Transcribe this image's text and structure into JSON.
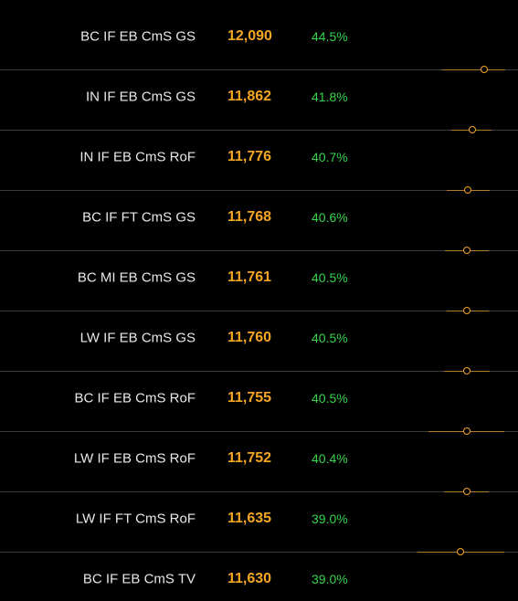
{
  "rows": [
    {
      "name": "BC IF EB CmS GS",
      "score": "12,090",
      "pct": "44.5%"
    },
    {
      "name": "IN IF EB CmS GS",
      "score": "11,862",
      "pct": "41.8%"
    },
    {
      "name": "IN IF EB CmS RoF",
      "score": "11,776",
      "pct": "40.7%"
    },
    {
      "name": "BC IF FT CmS GS",
      "score": "11,768",
      "pct": "40.6%"
    },
    {
      "name": "BC MI EB CmS GS",
      "score": "11,761",
      "pct": "40.5%"
    },
    {
      "name": "LW IF EB CmS GS",
      "score": "11,760",
      "pct": "40.5%"
    },
    {
      "name": "BC IF EB CmS RoF",
      "score": "11,755",
      "pct": "40.5%"
    },
    {
      "name": "LW IF EB CmS RoF",
      "score": "11,752",
      "pct": "40.4%"
    },
    {
      "name": "LW IF FT CmS RoF",
      "score": "11,635",
      "pct": "39.0%"
    },
    {
      "name": "BC IF EB CmS TV",
      "score": "11,630",
      "pct": "39.0%"
    }
  ],
  "colors": {
    "background": "#000000",
    "name_text": "#e8e8e8",
    "score_text": "#f5a623",
    "pct_text": "#35d44a",
    "divider": "#3a3a3a",
    "range_line": "#b07a2a",
    "marker": "#f5a623"
  }
}
